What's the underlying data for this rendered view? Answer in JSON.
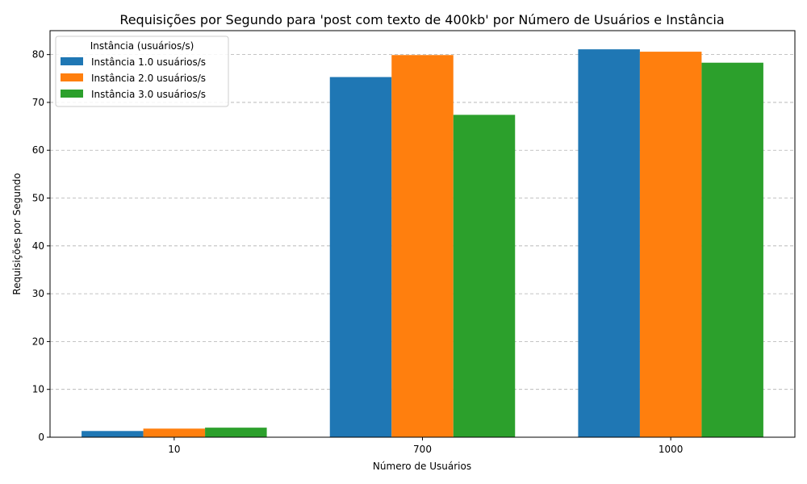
{
  "chart_data": {
    "type": "bar",
    "title": "Requisições por Segundo para 'post com texto de 400kb' por Número de Usuários e Instância",
    "xlabel": "Número de Usuários",
    "ylabel": "Requisições por Segundo",
    "categories": [
      "10",
      "700",
      "1000"
    ],
    "ylim": [
      0,
      85
    ],
    "yticks": [
      0,
      10,
      20,
      30,
      40,
      50,
      60,
      70,
      80
    ],
    "grid": true,
    "legend": {
      "title": "Instância (usuários/s)",
      "placement": "top-left"
    },
    "series": [
      {
        "name": "Instância 1.0 usuários/s",
        "color": "#1f77b4",
        "values": [
          1.3,
          75.3,
          81.1
        ]
      },
      {
        "name": "Instância 2.0 usuários/s",
        "color": "#ff7f0e",
        "values": [
          1.8,
          79.9,
          80.6
        ]
      },
      {
        "name": "Instância 3.0 usuários/s",
        "color": "#2ca02c",
        "values": [
          2.0,
          67.4,
          78.3
        ]
      }
    ]
  }
}
